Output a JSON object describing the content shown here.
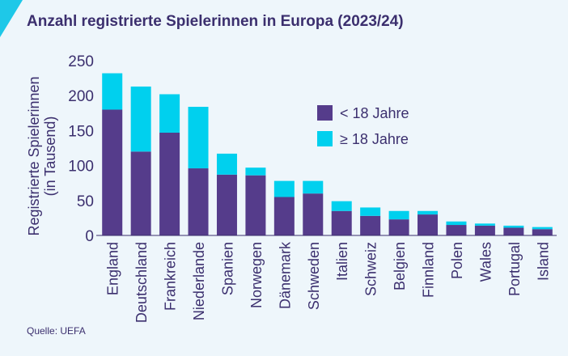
{
  "title": "Anzahl registrierte Spielerinnen in Europa (2023/24)",
  "source": "Quelle: UEFA",
  "colors": {
    "under18": "#553c8b",
    "over18": "#00d0ee",
    "text": "#3b2f6e",
    "background": "#eef6fb"
  },
  "chart_data": {
    "type": "bar",
    "stacked": true,
    "categories": [
      "England",
      "Deutschland",
      "Frankreich",
      "Niederlande",
      "Spanien",
      "Norwegen",
      "Dänemark",
      "Schweden",
      "Italien",
      "Schweiz",
      "Belgien",
      "Finnland",
      "Polen",
      "Wales",
      "Portugal",
      "Island"
    ],
    "series": [
      {
        "name": "< 18 Jahre",
        "color": "#553c8b",
        "values": [
          180,
          120,
          147,
          96,
          87,
          86,
          55,
          60,
          35,
          28,
          23,
          30,
          15,
          14,
          11,
          9
        ]
      },
      {
        "name": "≥ 18 Jahre",
        "color": "#00d0ee",
        "values": [
          52,
          93,
          55,
          88,
          30,
          11,
          23,
          18,
          14,
          12,
          12,
          5,
          5,
          3,
          3,
          3
        ]
      }
    ],
    "ylabel": "Registrierte Spielerinnen\n(in Tausend)",
    "ylabel_lines": [
      "Registrierte Spielerinnen",
      "(in Tausend)"
    ],
    "yticks": [
      0,
      50,
      100,
      150,
      200,
      250
    ],
    "ylim": [
      0,
      250
    ],
    "grid": false,
    "legend_position": "top-right"
  }
}
